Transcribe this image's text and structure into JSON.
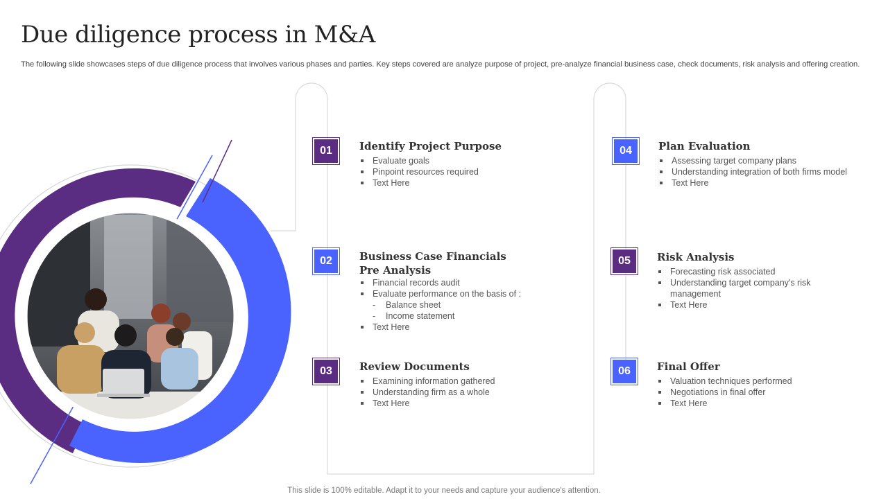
{
  "title": "Due diligence process in M&A",
  "subtitle": "The following slide showcases steps of due diligence process that involves various phases and parties. Key steps covered are analyze purpose of project, pre-analyze financial business case, check documents, risk analysis and offering creation.",
  "footer": "This slide is 100% editable. Adapt it to your needs and capture your audience's attention.",
  "colors": {
    "purple": "#5a2d82",
    "blue": "#4a63ff"
  },
  "image": {
    "icon": "team-meeting-photo",
    "description_visible": false
  },
  "steps": [
    {
      "number": "01",
      "title": "Identify Project Purpose",
      "items": [
        "Evaluate goals",
        "Pinpoint resources required",
        "Text Here"
      ]
    },
    {
      "number": "02",
      "title_line1": "Business Case Financials",
      "title_line2": "Pre Analysis",
      "items": [
        "Financial records audit",
        "Evaluate performance  on the basis of :"
      ],
      "subitems": [
        "Balance sheet",
        "Income statement"
      ],
      "last_item": "Text Here"
    },
    {
      "number": "03",
      "title": "Review Documents",
      "items": [
        "Examining information gathered",
        "Understanding  firm as a whole",
        "Text Here"
      ]
    },
    {
      "number": "04",
      "title": "Plan Evaluation",
      "items": [
        "Assessing target company plans",
        "Understanding  integration of both firms model",
        "Text Here"
      ]
    },
    {
      "number": "05",
      "title": "Risk Analysis",
      "items": [
        "Forecasting risk associated",
        "Understanding  target company's risk management",
        "Text Here"
      ]
    },
    {
      "number": "06",
      "title": "Final Offer",
      "items": [
        "Valuation techniques performed",
        "Negotiations in final offer",
        "Text Here"
      ]
    }
  ]
}
